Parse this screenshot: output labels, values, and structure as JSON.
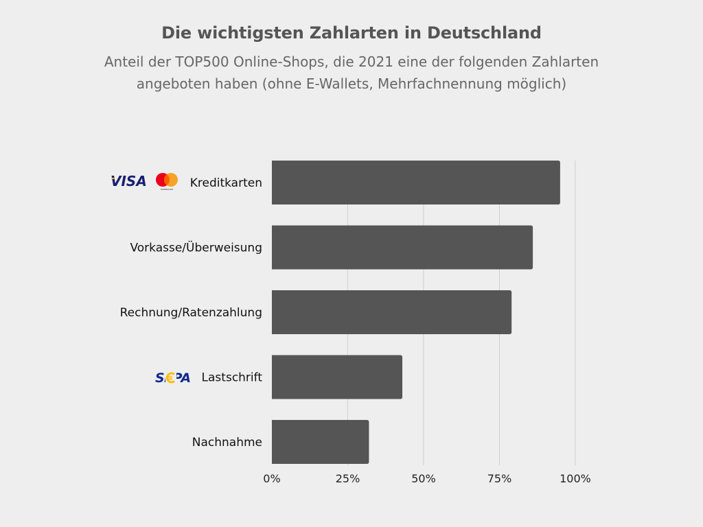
{
  "title": "Die wichtigsten Zahlarten in Deutschland",
  "subtitle": "Anteil der TOP500 Online-Shops, die 2021 eine der folgenden Zahlarten angeboten haben (ohne E-Wallets, Mehrfachnennung möglich)",
  "colors": {
    "background": "#eeeeee",
    "bar": "#555555",
    "grid": "#cfcfcf",
    "title": "#555555",
    "subtitle": "#666666",
    "visa": "#1a1f71",
    "visa_accent": "#f7b600",
    "mastercard_red": "#eb001b",
    "mastercard_yellow": "#f79e1b",
    "sepa_blue": "#10298e",
    "sepa_yellow": "#ffbe00"
  },
  "logos": {
    "visa": "VISA",
    "mastercard": "mastercard",
    "sepa": "SEPA"
  },
  "chart_data": {
    "type": "bar",
    "orientation": "horizontal",
    "title": "Die wichtigsten Zahlarten in Deutschland",
    "subtitle": "Anteil der TOP500 Online-Shops, die 2021 eine der folgenden Zahlarten angeboten haben (ohne E-Wallets, Mehrfachnennung möglich)",
    "categories": [
      "Kreditkarten",
      "Vorkasse/Überweisung",
      "Rechnung/Ratenzahlung",
      "Lastschrift",
      "Nachnahme"
    ],
    "values": [
      95,
      86,
      79,
      43,
      32
    ],
    "xlim": [
      0,
      100
    ],
    "xticks": [
      0,
      25,
      50,
      75,
      100
    ],
    "xtick_labels": [
      "0%",
      "25%",
      "50%",
      "75%",
      "100%"
    ],
    "xlabel": "",
    "ylabel": "",
    "grid": "vertical",
    "legend": "none",
    "category_logos": {
      "Kreditkarten": [
        "visa-icon",
        "mastercard-icon"
      ],
      "Lastschrift": [
        "sepa-icon"
      ]
    }
  }
}
